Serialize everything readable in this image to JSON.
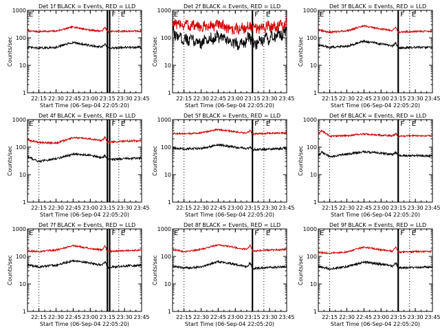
{
  "chart_data": [
    {
      "type": "line",
      "title": "Det 1f BLACK = Events, RED = LLD",
      "xlabel": "Start Time (06-Sep-04 22:05:20)",
      "ylabel": "Counts/sec",
      "yscale": "log",
      "ylim": [
        1,
        1000
      ],
      "yticks": [
        1,
        10,
        100,
        1000
      ],
      "ytick_labels": [
        "1",
        "10",
        "100",
        "1000"
      ],
      "xlim": [
        "22:05",
        "23:45"
      ],
      "xtick_labels": [
        "22:15",
        "22:30",
        "22:45",
        "23:00",
        "23:15",
        "23:30",
        "23:45"
      ],
      "x": [
        "22:05",
        "22:15",
        "22:30",
        "22:45",
        "23:00",
        "23:10",
        "23:13",
        "23:15",
        "23:30",
        "23:45"
      ],
      "series": [
        {
          "name": "LLD",
          "color": "#d00000",
          "values": [
            175,
            170,
            175,
            250,
            190,
            175,
            240,
            170,
            175,
            175
          ]
        },
        {
          "name": "Events",
          "color": "#000000",
          "values": [
            45,
            42,
            45,
            68,
            52,
            46,
            58,
            42,
            45,
            45
          ]
        }
      ],
      "markers": {
        "dotted": [
          "22:15",
          "23:25"
        ],
        "solid": [
          "23:15",
          "23:17"
        ],
        "letters": [
          "E",
          "F",
          "E"
        ]
      },
      "grid": false,
      "legend": "none"
    },
    {
      "type": "line",
      "title": "Det 2f BLACK = Events, RED = LLD",
      "xlabel": "Start Time (06-Sep-04 22:05:20)",
      "ylabel": "Counts/sec",
      "yscale": "log",
      "ylim": [
        1,
        1000
      ],
      "yticks": [
        1,
        10,
        100,
        1000
      ],
      "ytick_labels": [
        "1",
        "10",
        "100",
        "1000"
      ],
      "xlim": [
        "22:05",
        "23:45"
      ],
      "xtick_labels": [
        "22:15",
        "22:30",
        "22:45",
        "23:00",
        "23:15",
        "23:30",
        "23:45"
      ],
      "x": [
        "22:05",
        "22:15",
        "22:30",
        "22:45",
        "23:00",
        "23:10",
        "23:13",
        "23:15",
        "23:30",
        "23:45"
      ],
      "series": [
        {
          "name": "LLD",
          "color": "#d00000",
          "values": [
            300,
            310,
            240,
            290,
            200,
            230,
            280,
            210,
            260,
            300
          ]
        },
        {
          "name": "Events",
          "color": "#000000",
          "values": [
            150,
            90,
            70,
            110,
            60,
            75,
            120,
            55,
            95,
            160
          ]
        }
      ],
      "markers": {
        "dotted": [
          "22:15",
          "23:25"
        ],
        "solid": [
          "23:15"
        ],
        "letters": [
          "E",
          "F",
          "E"
        ]
      },
      "grid": false,
      "legend": "none"
    },
    {
      "type": "line",
      "title": "Det 3f BLACK = Events, RED = LLD",
      "xlabel": "Start Time (06-Sep-04 22:05:20)",
      "ylabel": "Counts/sec",
      "yscale": "log",
      "ylim": [
        1,
        1000
      ],
      "yticks": [
        1,
        10,
        100,
        1000
      ],
      "ytick_labels": [
        "1",
        "10",
        "100",
        "1000"
      ],
      "xlim": [
        "22:05",
        "23:45"
      ],
      "xtick_labels": [
        "22:15",
        "22:30",
        "22:45",
        "23:00",
        "23:15",
        "23:30",
        "23:45"
      ],
      "x": [
        "22:05",
        "22:15",
        "22:30",
        "22:45",
        "23:00",
        "23:10",
        "23:13",
        "23:15",
        "23:30",
        "23:45"
      ],
      "series": [
        {
          "name": "LLD",
          "color": "#d00000",
          "values": [
            190,
            160,
            180,
            270,
            210,
            185,
            250,
            160,
            170,
            175
          ]
        },
        {
          "name": "Events",
          "color": "#000000",
          "values": [
            55,
            45,
            50,
            75,
            60,
            50,
            65,
            42,
            45,
            45
          ]
        }
      ],
      "markers": {
        "dotted": [
          "22:15",
          "23:25"
        ],
        "solid": [
          "23:15"
        ],
        "letters": [
          "E",
          "F",
          "E"
        ]
      },
      "grid": false,
      "legend": "none"
    },
    {
      "type": "line",
      "title": "Det 4f BLACK = Events, RED = LLD",
      "xlabel": "Start Time (06-Sep-04 22:05:20)",
      "ylabel": "Counts/sec",
      "yscale": "log",
      "ylim": [
        1,
        1000
      ],
      "yticks": [
        1,
        10,
        100,
        1000
      ],
      "ytick_labels": [
        "1",
        "10",
        "100",
        "1000"
      ],
      "xlim": [
        "22:05",
        "23:45"
      ],
      "xtick_labels": [
        "22:15",
        "22:30",
        "22:45",
        "23:00",
        "23:15",
        "23:30",
        "23:45"
      ],
      "x": [
        "22:05",
        "22:15",
        "22:30",
        "22:45",
        "23:00",
        "23:10",
        "23:13",
        "23:15",
        "23:30",
        "23:45"
      ],
      "series": [
        {
          "name": "LLD",
          "color": "#d00000",
          "values": [
            180,
            150,
            140,
            220,
            200,
            170,
            230,
            150,
            165,
            170
          ]
        },
        {
          "name": "Events",
          "color": "#000000",
          "values": [
            45,
            30,
            38,
            55,
            52,
            40,
            50,
            35,
            38,
            40
          ]
        }
      ],
      "markers": {
        "dotted": [
          "22:15",
          "23:25"
        ],
        "solid": [
          "23:15",
          "23:17"
        ],
        "letters": [
          "E",
          "F",
          "E"
        ]
      },
      "grid": false,
      "legend": "none"
    },
    {
      "type": "line",
      "title": "Det 5f BLACK = Events, RED = LLD",
      "xlabel": "Start Time (06-Sep-04 22:05:20)",
      "ylabel": "Counts/sec",
      "yscale": "log",
      "ylim": [
        1,
        1000
      ],
      "yticks": [
        1,
        10,
        100,
        1000
      ],
      "ytick_labels": [
        "1",
        "10",
        "100",
        "1000"
      ],
      "xlim": [
        "22:05",
        "23:45"
      ],
      "xtick_labels": [
        "22:15",
        "22:30",
        "22:45",
        "23:00",
        "23:15",
        "23:30",
        "23:45"
      ],
      "x": [
        "22:05",
        "22:15",
        "22:30",
        "22:45",
        "23:00",
        "23:10",
        "23:13",
        "23:15",
        "23:30",
        "23:45"
      ],
      "series": [
        {
          "name": "LLD",
          "color": "#d00000",
          "values": [
            320,
            300,
            330,
            440,
            360,
            320,
            400,
            300,
            320,
            330
          ]
        },
        {
          "name": "Events",
          "color": "#000000",
          "values": [
            95,
            85,
            90,
            120,
            100,
            88,
            100,
            80,
            85,
            90
          ]
        }
      ],
      "markers": {
        "dotted": [
          "22:15",
          "23:25"
        ],
        "solid": [
          "23:15"
        ],
        "letters": [
          "F",
          "E"
        ]
      },
      "grid": false,
      "legend": "none"
    },
    {
      "type": "line",
      "title": "Det 6f BLACK = Events, RED = LLD",
      "xlabel": "Start Time (06-Sep-04 22:05:20)",
      "ylabel": "Counts/sec",
      "yscale": "log",
      "ylim": [
        1,
        1000
      ],
      "yticks": [
        1,
        10,
        100,
        1000
      ],
      "ytick_labels": [
        "1",
        "10",
        "100",
        "1000"
      ],
      "xlim": [
        "22:05",
        "23:45"
      ],
      "xtick_labels": [
        "22:15",
        "22:30",
        "22:45",
        "23:00",
        "23:15",
        "23:30",
        "23:45"
      ],
      "x": [
        "22:05",
        "22:08",
        "22:15",
        "22:30",
        "22:45",
        "23:00",
        "23:10",
        "23:13",
        "23:15",
        "23:30",
        "23:45"
      ],
      "series": [
        {
          "name": "LLD",
          "color": "#d00000",
          "values": [
            300,
            400,
            250,
            260,
            300,
            270,
            260,
            310,
            250,
            260,
            260
          ]
        },
        {
          "name": "Events",
          "color": "#000000",
          "values": [
            50,
            65,
            45,
            55,
            68,
            60,
            55,
            65,
            48,
            50,
            48
          ]
        }
      ],
      "markers": {
        "dotted": [
          "22:15",
          "23:25"
        ],
        "solid": [
          "23:15"
        ],
        "letters": [
          "F",
          "E"
        ]
      },
      "grid": false,
      "legend": "none"
    },
    {
      "type": "line",
      "title": "Det 7f BLACK = Events, RED = LLD",
      "xlabel": "Start Time (06-Sep-04 22:05:20)",
      "ylabel": "Counts/sec",
      "yscale": "log",
      "ylim": [
        1,
        1000
      ],
      "yticks": [
        1,
        10,
        100,
        1000
      ],
      "ytick_labels": [
        "1",
        "10",
        "100",
        "1000"
      ],
      "xlim": [
        "22:05",
        "23:45"
      ],
      "xtick_labels": [
        "22:15",
        "22:30",
        "22:45",
        "23:00",
        "23:15",
        "23:30",
        "23:45"
      ],
      "x": [
        "22:05",
        "22:15",
        "22:30",
        "22:45",
        "23:00",
        "23:10",
        "23:13",
        "23:15",
        "23:30",
        "23:45"
      ],
      "series": [
        {
          "name": "LLD",
          "color": "#d00000",
          "values": [
            160,
            150,
            170,
            250,
            195,
            170,
            240,
            150,
            160,
            170
          ]
        },
        {
          "name": "Events",
          "color": "#000000",
          "values": [
            48,
            42,
            48,
            70,
            58,
            48,
            65,
            40,
            45,
            48
          ]
        }
      ],
      "markers": {
        "dotted": [
          "22:15",
          "23:25"
        ],
        "solid": [
          "23:15",
          "23:17"
        ],
        "letters": [
          "E",
          "F",
          "E"
        ]
      },
      "grid": false,
      "legend": "none"
    },
    {
      "type": "line",
      "title": "Det 8f BLACK = Events, RED = LLD",
      "xlabel": "Start Time (06-Sep-04 22:05:20)",
      "ylabel": "Counts/sec",
      "yscale": "log",
      "ylim": [
        1,
        1000
      ],
      "yticks": [
        1,
        10,
        100,
        1000
      ],
      "ytick_labels": [
        "1",
        "10",
        "100",
        "1000"
      ],
      "xlim": [
        "22:05",
        "23:45"
      ],
      "xtick_labels": [
        "22:15",
        "22:30",
        "22:45",
        "23:00",
        "23:15",
        "23:30",
        "23:45"
      ],
      "x": [
        "22:05",
        "22:15",
        "22:30",
        "22:45",
        "23:00",
        "23:10",
        "23:13",
        "23:15",
        "23:30",
        "23:45"
      ],
      "series": [
        {
          "name": "LLD",
          "color": "#d00000",
          "values": [
            180,
            150,
            180,
            270,
            210,
            180,
            260,
            160,
            170,
            180
          ]
        },
        {
          "name": "Events",
          "color": "#000000",
          "values": [
            45,
            38,
            42,
            65,
            52,
            42,
            60,
            36,
            40,
            42
          ]
        }
      ],
      "markers": {
        "dotted": [
          "22:15",
          "23:25"
        ],
        "solid": [
          "23:15"
        ],
        "letters": [
          "E",
          "F",
          "E"
        ]
      },
      "grid": false,
      "legend": "none"
    },
    {
      "type": "line",
      "title": "Det 9f BLACK = Events, RED = LLD",
      "xlabel": "Start Time (06-Sep-04 22:05:20)",
      "ylabel": "Counts/sec",
      "yscale": "log",
      "ylim": [
        1,
        1000
      ],
      "yticks": [
        1,
        10,
        100,
        1000
      ],
      "ytick_labels": [
        "1",
        "10",
        "100",
        "1000"
      ],
      "xlim": [
        "22:05",
        "23:45"
      ],
      "xtick_labels": [
        "22:15",
        "22:30",
        "22:45",
        "23:00",
        "23:15",
        "23:30",
        "23:45"
      ],
      "x": [
        "22:05",
        "22:15",
        "22:30",
        "22:45",
        "23:00",
        "23:10",
        "23:13",
        "23:15",
        "23:30",
        "23:45"
      ],
      "series": [
        {
          "name": "LLD",
          "color": "#d00000",
          "values": [
            140,
            130,
            145,
            220,
            175,
            155,
            220,
            140,
            150,
            150
          ]
        },
        {
          "name": "Events",
          "color": "#000000",
          "values": [
            42,
            36,
            42,
            62,
            52,
            45,
            58,
            38,
            40,
            42
          ]
        }
      ],
      "markers": {
        "dotted": [
          "22:15",
          "23:25"
        ],
        "solid": [
          "23:15"
        ],
        "letters": [
          "E",
          "F",
          "E"
        ]
      },
      "grid": false,
      "legend": "none"
    }
  ]
}
